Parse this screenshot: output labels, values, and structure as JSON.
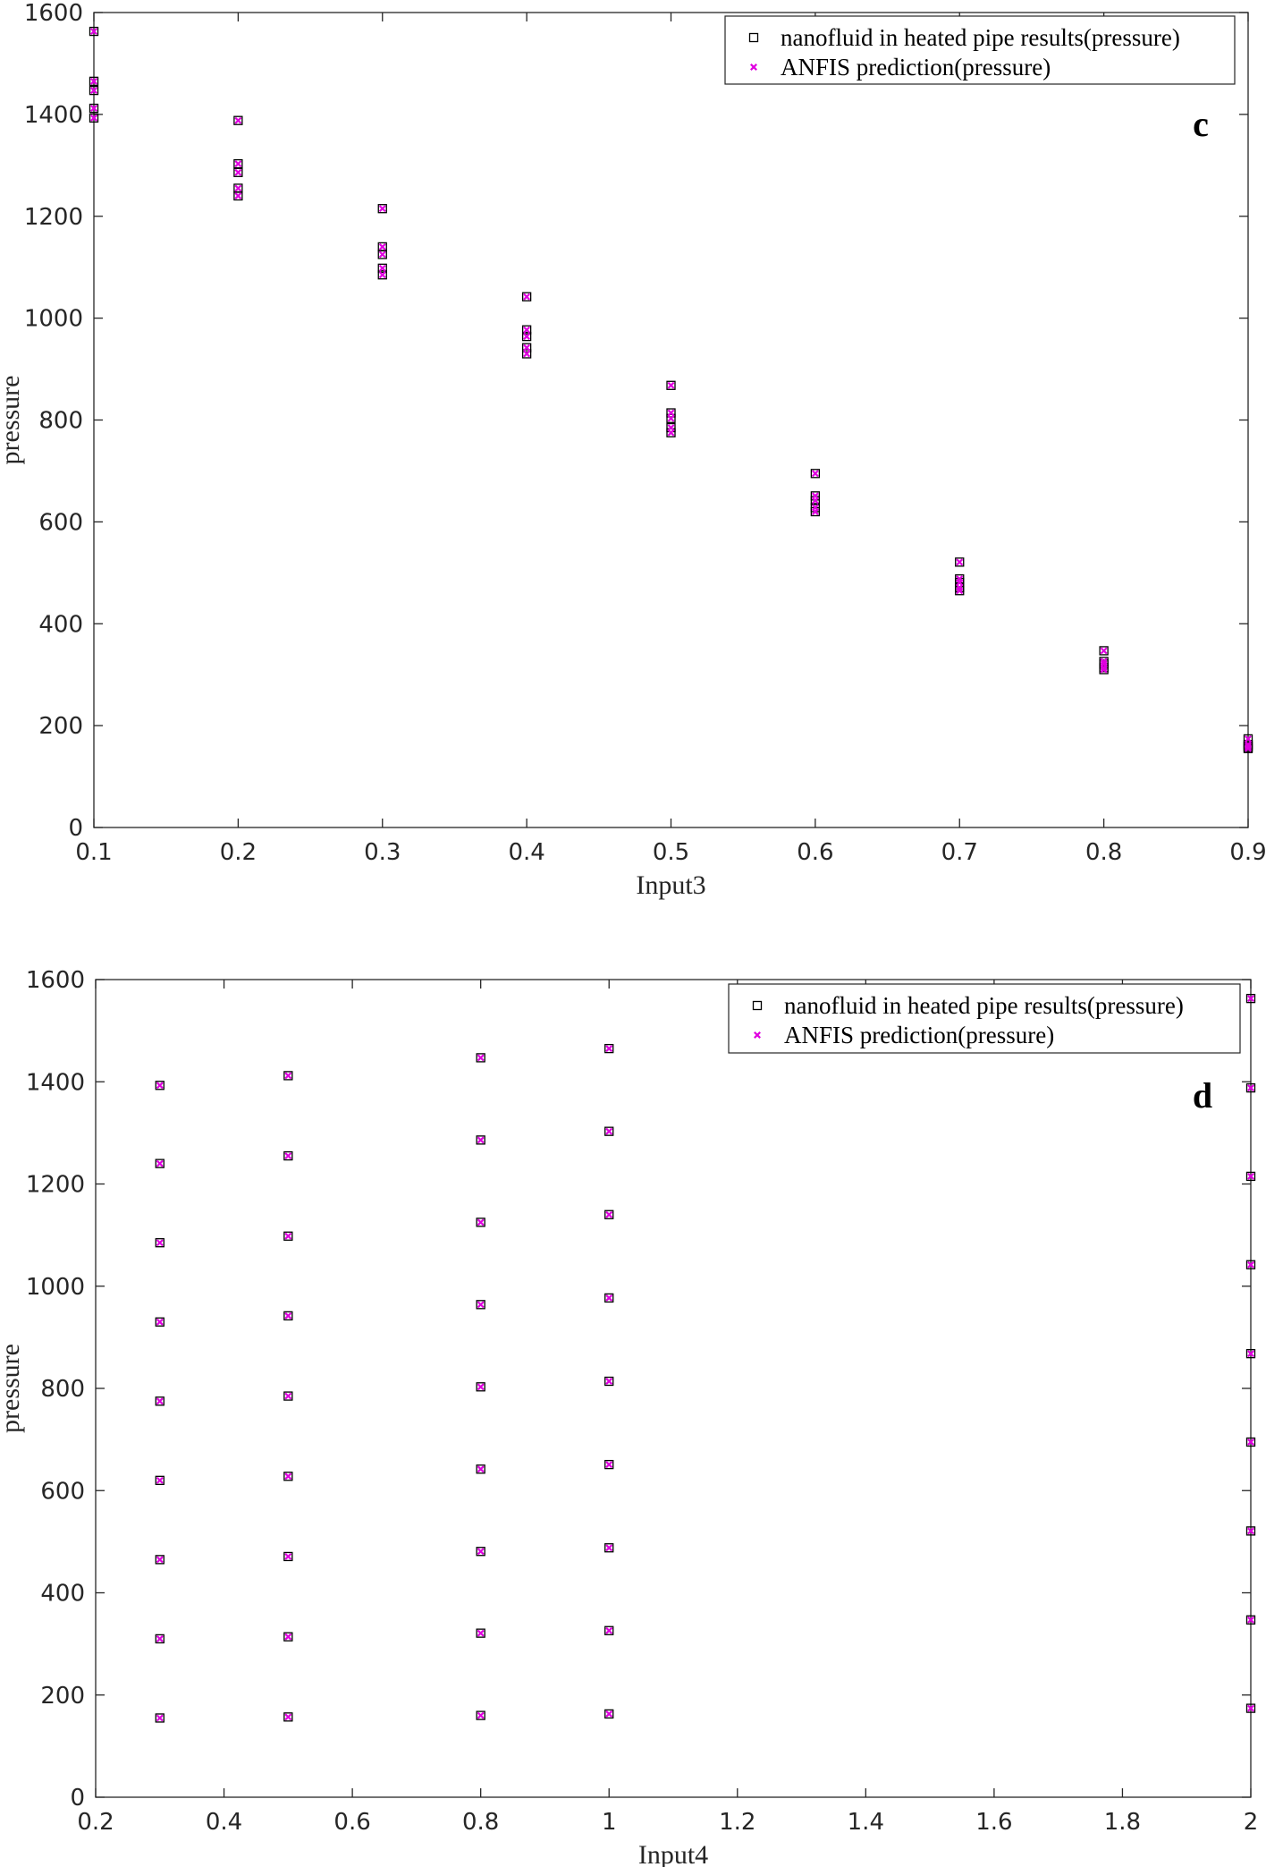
{
  "chart_data": [
    {
      "type": "scatter",
      "title": "",
      "panel_label": "c",
      "xlabel": "Input3",
      "ylabel": "pressure",
      "xlim": [
        0.1,
        0.9
      ],
      "ylim": [
        0,
        1600
      ],
      "xticks": [
        "0.1",
        "0.2",
        "0.3",
        "0.4",
        "0.5",
        "0.6",
        "0.7",
        "0.8",
        "0.9"
      ],
      "yticks": [
        "0",
        "200",
        "400",
        "600",
        "800",
        "1000",
        "1200",
        "1400",
        "1600"
      ],
      "grid": false,
      "legend_position": "top-right",
      "series": [
        {
          "name": "nanofluid in heated pipe results(pressure)",
          "marker": "square",
          "color": "#000000",
          "points": [
            [
              0.1,
              1563
            ],
            [
              0.1,
              1465
            ],
            [
              0.1,
              1447
            ],
            [
              0.1,
              1412
            ],
            [
              0.1,
              1393
            ],
            [
              0.2,
              1388
            ],
            [
              0.2,
              1303
            ],
            [
              0.2,
              1286
            ],
            [
              0.2,
              1255
            ],
            [
              0.2,
              1240
            ],
            [
              0.3,
              1215
            ],
            [
              0.3,
              1140
            ],
            [
              0.3,
              1125
            ],
            [
              0.3,
              1098
            ],
            [
              0.3,
              1085
            ],
            [
              0.4,
              1042
            ],
            [
              0.4,
              977
            ],
            [
              0.4,
              964
            ],
            [
              0.4,
              942
            ],
            [
              0.4,
              930
            ],
            [
              0.5,
              868
            ],
            [
              0.5,
              814
            ],
            [
              0.5,
              803
            ],
            [
              0.5,
              785
            ],
            [
              0.5,
              775
            ],
            [
              0.6,
              695
            ],
            [
              0.6,
              651
            ],
            [
              0.6,
              642
            ],
            [
              0.6,
              628
            ],
            [
              0.6,
              620
            ],
            [
              0.7,
              521
            ],
            [
              0.7,
              488
            ],
            [
              0.7,
              481
            ],
            [
              0.7,
              471
            ],
            [
              0.7,
              465
            ],
            [
              0.8,
              347
            ],
            [
              0.8,
              326
            ],
            [
              0.8,
              321
            ],
            [
              0.8,
              314
            ],
            [
              0.8,
              310
            ],
            [
              0.9,
              174
            ],
            [
              0.9,
              163
            ],
            [
              0.9,
              160
            ],
            [
              0.9,
              157
            ],
            [
              0.9,
              155
            ]
          ]
        },
        {
          "name": "ANFIS prediction(pressure)",
          "marker": "x",
          "color": "#e000e0",
          "points": [
            [
              0.1,
              1563
            ],
            [
              0.1,
              1465
            ],
            [
              0.1,
              1447
            ],
            [
              0.1,
              1412
            ],
            [
              0.1,
              1393
            ],
            [
              0.2,
              1388
            ],
            [
              0.2,
              1303
            ],
            [
              0.2,
              1286
            ],
            [
              0.2,
              1255
            ],
            [
              0.2,
              1240
            ],
            [
              0.3,
              1215
            ],
            [
              0.3,
              1140
            ],
            [
              0.3,
              1125
            ],
            [
              0.3,
              1098
            ],
            [
              0.3,
              1085
            ],
            [
              0.4,
              1042
            ],
            [
              0.4,
              977
            ],
            [
              0.4,
              964
            ],
            [
              0.4,
              942
            ],
            [
              0.4,
              930
            ],
            [
              0.5,
              868
            ],
            [
              0.5,
              814
            ],
            [
              0.5,
              803
            ],
            [
              0.5,
              785
            ],
            [
              0.5,
              775
            ],
            [
              0.6,
              695
            ],
            [
              0.6,
              651
            ],
            [
              0.6,
              642
            ],
            [
              0.6,
              628
            ],
            [
              0.6,
              620
            ],
            [
              0.7,
              521
            ],
            [
              0.7,
              488
            ],
            [
              0.7,
              481
            ],
            [
              0.7,
              471
            ],
            [
              0.7,
              465
            ],
            [
              0.8,
              347
            ],
            [
              0.8,
              326
            ],
            [
              0.8,
              321
            ],
            [
              0.8,
              314
            ],
            [
              0.8,
              310
            ],
            [
              0.9,
              174
            ],
            [
              0.9,
              163
            ],
            [
              0.9,
              160
            ],
            [
              0.9,
              157
            ],
            [
              0.9,
              155
            ]
          ]
        }
      ]
    },
    {
      "type": "scatter",
      "title": "",
      "panel_label": "d",
      "xlabel": "Input4",
      "ylabel": "pressure",
      "xlim": [
        0.2,
        2
      ],
      "ylim": [
        0,
        1600
      ],
      "xticks": [
        "0.2",
        "0.4",
        "0.6",
        "0.8",
        "1",
        "1.2",
        "1.4",
        "1.6",
        "1.8",
        "2"
      ],
      "yticks": [
        "0",
        "200",
        "400",
        "600",
        "800",
        "1000",
        "1200",
        "1400",
        "1600"
      ],
      "grid": false,
      "legend_position": "top-right",
      "series": [
        {
          "name": "nanofluid in heated pipe results(pressure)",
          "marker": "square",
          "color": "#000000",
          "points": [
            [
              0.3,
              1393
            ],
            [
              0.3,
              1240
            ],
            [
              0.3,
              1085
            ],
            [
              0.3,
              930
            ],
            [
              0.3,
              775
            ],
            [
              0.3,
              620
            ],
            [
              0.3,
              465
            ],
            [
              0.3,
              310
            ],
            [
              0.3,
              155
            ],
            [
              0.5,
              1412
            ],
            [
              0.5,
              1255
            ],
            [
              0.5,
              1098
            ],
            [
              0.5,
              942
            ],
            [
              0.5,
              785
            ],
            [
              0.5,
              628
            ],
            [
              0.5,
              471
            ],
            [
              0.5,
              314
            ],
            [
              0.5,
              157
            ],
            [
              0.8,
              1447
            ],
            [
              0.8,
              1286
            ],
            [
              0.8,
              1125
            ],
            [
              0.8,
              964
            ],
            [
              0.8,
              803
            ],
            [
              0.8,
              642
            ],
            [
              0.8,
              481
            ],
            [
              0.8,
              321
            ],
            [
              0.8,
              160
            ],
            [
              1,
              1465
            ],
            [
              1,
              1303
            ],
            [
              1,
              1140
            ],
            [
              1,
              977
            ],
            [
              1,
              814
            ],
            [
              1,
              651
            ],
            [
              1,
              488
            ],
            [
              1,
              326
            ],
            [
              1,
              163
            ],
            [
              2,
              1563
            ],
            [
              2,
              1388
            ],
            [
              2,
              1215
            ],
            [
              2,
              1042
            ],
            [
              2,
              868
            ],
            [
              2,
              695
            ],
            [
              2,
              521
            ],
            [
              2,
              347
            ],
            [
              2,
              174
            ]
          ]
        },
        {
          "name": "ANFIS prediction(pressure)",
          "marker": "x",
          "color": "#e000e0",
          "points": [
            [
              0.3,
              1393
            ],
            [
              0.3,
              1240
            ],
            [
              0.3,
              1085
            ],
            [
              0.3,
              930
            ],
            [
              0.3,
              775
            ],
            [
              0.3,
              620
            ],
            [
              0.3,
              465
            ],
            [
              0.3,
              310
            ],
            [
              0.3,
              155
            ],
            [
              0.5,
              1412
            ],
            [
              0.5,
              1255
            ],
            [
              0.5,
              1098
            ],
            [
              0.5,
              942
            ],
            [
              0.5,
              785
            ],
            [
              0.5,
              628
            ],
            [
              0.5,
              471
            ],
            [
              0.5,
              314
            ],
            [
              0.5,
              157
            ],
            [
              0.8,
              1447
            ],
            [
              0.8,
              1286
            ],
            [
              0.8,
              1125
            ],
            [
              0.8,
              964
            ],
            [
              0.8,
              803
            ],
            [
              0.8,
              642
            ],
            [
              0.8,
              481
            ],
            [
              0.8,
              321
            ],
            [
              0.8,
              160
            ],
            [
              1,
              1465
            ],
            [
              1,
              1303
            ],
            [
              1,
              1140
            ],
            [
              1,
              977
            ],
            [
              1,
              814
            ],
            [
              1,
              651
            ],
            [
              1,
              488
            ],
            [
              1,
              326
            ],
            [
              1,
              163
            ],
            [
              2,
              1563
            ],
            [
              2,
              1388
            ],
            [
              2,
              1215
            ],
            [
              2,
              1042
            ],
            [
              2,
              868
            ],
            [
              2,
              695
            ],
            [
              2,
              521
            ],
            [
              2,
              347
            ],
            [
              2,
              174
            ]
          ]
        }
      ]
    }
  ]
}
